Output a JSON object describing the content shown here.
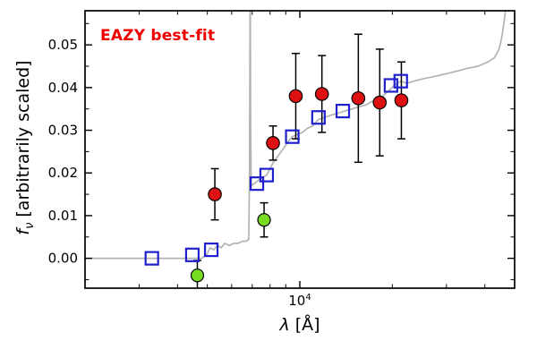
{
  "figure": {
    "background": "#ffffff"
  },
  "chart_data": {
    "type": "scatter",
    "annotation": "EAZY best-fit",
    "annotation_color": "#ee0000",
    "xlabel_lambda": "λ",
    "xlabel_rest": " [Å]",
    "ylabel_f": "f",
    "ylabel_sub": "ν",
    "ylabel_rest": " [arbitrarily scaled]",
    "xscale": "log",
    "xlim": [
      2000,
      50000
    ],
    "ylim": [
      -0.007,
      0.058
    ],
    "yticks": [
      0,
      0.01,
      0.02,
      0.03,
      0.04,
      0.05
    ],
    "ytick_labels": [
      "0.00",
      "0.01",
      "0.02",
      "0.03",
      "0.04",
      "0.05"
    ],
    "y_minor_step": 0.005,
    "xtick_major": [
      10000
    ],
    "xtick_base": "10",
    "xtick_exp": "4",
    "xtick_minor": [
      3000,
      4000,
      5000,
      6000,
      7000,
      8000,
      9000,
      20000,
      30000,
      40000
    ],
    "colors": {
      "spectrum": "#b3b3b3",
      "model": "#2020cc",
      "observed": "#dd1111",
      "flagged": "#77dd22",
      "error": "#000000",
      "frame": "#000000"
    },
    "series": {
      "model_spectrum": {
        "name": "model spectrum",
        "x": [
          2000,
          2500,
          3000,
          3500,
          4000,
          4400,
          4800,
          5000,
          5100,
          5250,
          5400,
          5550,
          5700,
          5900,
          6100,
          6300,
          6500,
          6700,
          6820,
          6860,
          6890,
          6920,
          6950,
          7100,
          7250,
          7400,
          7600,
          7800,
          8000,
          8200,
          8400,
          8600,
          8900,
          9200,
          9450,
          9800,
          10200,
          10600,
          11000,
          11500,
          12000,
          12600,
          13300,
          14000,
          14800,
          15600,
          16500,
          17400,
          18300,
          19300,
          20300,
          21300,
          22300,
          23500,
          25000,
          27000,
          29000,
          31000,
          33000,
          35000,
          38000,
          41000,
          43000,
          44500,
          45500,
          46500,
          47200
        ],
        "y": [
          0,
          0,
          0,
          0,
          0,
          0,
          0,
          0.001,
          0.0025,
          0.002,
          0.003,
          0.0025,
          0.0035,
          0.003,
          0.0035,
          0.0035,
          0.004,
          0.004,
          0.0045,
          0.02,
          0.068,
          0.03,
          0.017,
          0.0175,
          0.018,
          0.0185,
          0.019,
          0.0195,
          0.021,
          0.0225,
          0.0235,
          0.0245,
          0.026,
          0.0275,
          0.0285,
          0.029,
          0.0295,
          0.0305,
          0.031,
          0.0325,
          0.033,
          0.0335,
          0.034,
          0.0345,
          0.035,
          0.0355,
          0.036,
          0.037,
          0.0375,
          0.039,
          0.0405,
          0.0415,
          0.041,
          0.0415,
          0.042,
          0.0425,
          0.043,
          0.0435,
          0.044,
          0.0445,
          0.045,
          0.046,
          0.047,
          0.049,
          0.052,
          0.057,
          0.062
        ]
      },
      "model_photometry": {
        "name": "model photometry",
        "marker": "open-square",
        "points": [
          [
            3300,
            0.0
          ],
          [
            4470,
            0.0008
          ],
          [
            5150,
            0.002
          ],
          [
            7250,
            0.0175
          ],
          [
            7800,
            0.0195
          ],
          [
            9450,
            0.0285
          ],
          [
            11500,
            0.033
          ],
          [
            13800,
            0.0345
          ],
          [
            19800,
            0.0405
          ],
          [
            21300,
            0.0415
          ]
        ]
      },
      "observed_photometry": {
        "name": "observed photometry",
        "marker": "filled-circle",
        "points": [
          [
            5290,
            0.015,
            0.006
          ],
          [
            8180,
            0.027,
            0.004
          ],
          [
            9700,
            0.038,
            0.01
          ],
          [
            11800,
            0.0385,
            0.009
          ],
          [
            15500,
            0.0375,
            0.015
          ],
          [
            18200,
            0.0365,
            0.0125
          ],
          [
            21400,
            0.037,
            0.009
          ]
        ]
      },
      "flagged_photometry": {
        "name": "flagged photometry",
        "marker": "filled-circle",
        "points": [
          [
            4640,
            -0.004,
            0.0035
          ],
          [
            7650,
            0.009,
            0.004
          ]
        ]
      }
    }
  }
}
